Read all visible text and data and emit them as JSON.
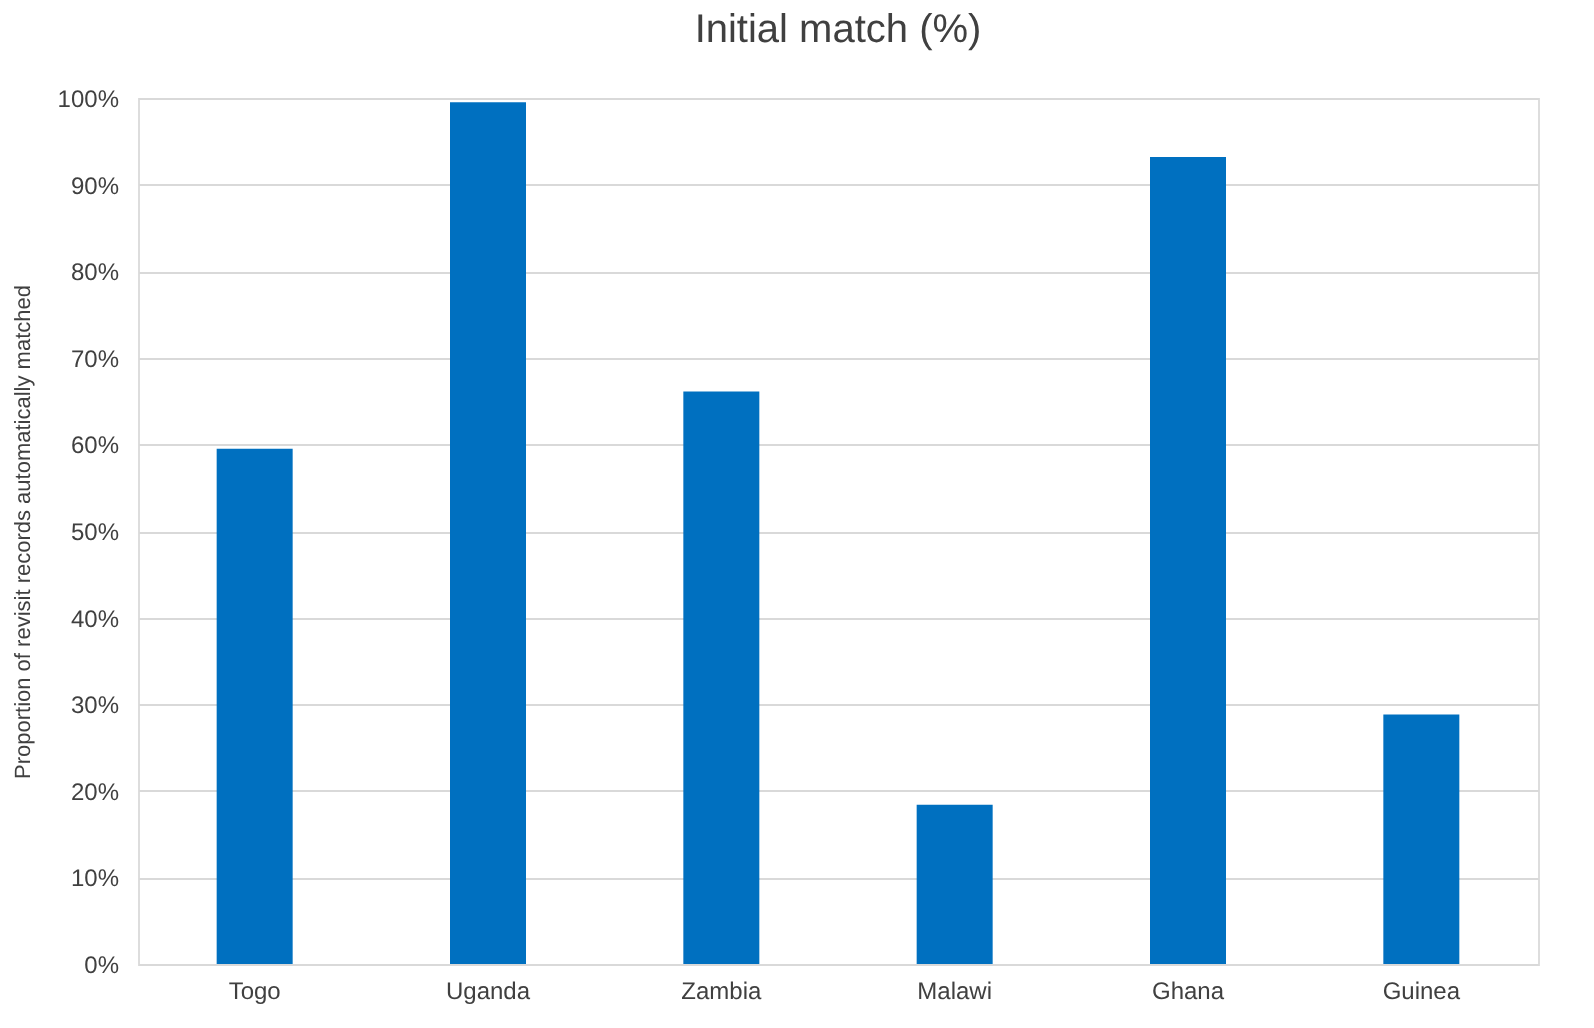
{
  "chart_data": {
    "type": "bar",
    "title": "Initial match (%)",
    "ylabel": "Proportion of revisit records automatically matched",
    "categories": [
      "Togo",
      "Uganda",
      "Zambia",
      "Malawi",
      "Ghana",
      "Guinea"
    ],
    "values": [
      59.5,
      99.5,
      66.1,
      18.4,
      93.2,
      28.8
    ],
    "color": "#0070c0",
    "ylim": [
      0,
      100
    ],
    "yticks": [
      {
        "value": 0,
        "label": "0%"
      },
      {
        "value": 10,
        "label": "10%"
      },
      {
        "value": 20,
        "label": "20%"
      },
      {
        "value": 30,
        "label": "30%"
      },
      {
        "value": 40,
        "label": "40%"
      },
      {
        "value": 50,
        "label": "50%"
      },
      {
        "value": 60,
        "label": "60%"
      },
      {
        "value": 70,
        "label": "70%"
      },
      {
        "value": 80,
        "label": "80%"
      },
      {
        "value": 90,
        "label": "90%"
      },
      {
        "value": 100,
        "label": "100%"
      }
    ],
    "grid": "y"
  }
}
